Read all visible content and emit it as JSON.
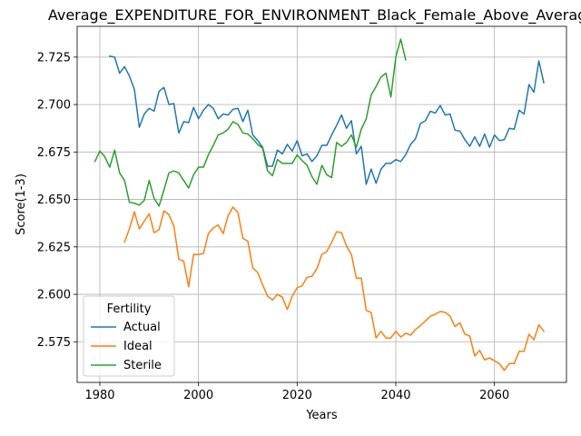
{
  "chart_data": {
    "type": "line",
    "title": "Average_EXPENDITURE_FOR_ENVIRONMENT_Black_Female_Above_Average",
    "xlabel": "Years",
    "ylabel": "Score(1-3)",
    "xlim": [
      1975.4,
      2074.6
    ],
    "ylim": [
      2.5536,
      2.7412
    ],
    "x_ticks": [
      1980,
      2000,
      2020,
      2040,
      2060
    ],
    "y_ticks": [
      2.575,
      2.6,
      2.625,
      2.65,
      2.675,
      2.7,
      2.725
    ],
    "y_tick_labels": [
      "2.575",
      "2.600",
      "2.625",
      "2.650",
      "2.675",
      "2.700",
      "2.725"
    ],
    "grid": true,
    "legend": {
      "title": "Fertility",
      "placement": "lower-left"
    },
    "colors": {
      "Actual": "#1f77b4",
      "Ideal": "#ff7f0e",
      "Sterile": "#2ca02c"
    },
    "series": [
      {
        "name": "Actual",
        "x": [
          1982,
          1983,
          1984,
          1985,
          1986,
          1987,
          1988,
          1989,
          1990,
          1991,
          1992,
          1993,
          1994,
          1995,
          1996,
          1997,
          1998,
          1999,
          2000,
          2001,
          2002,
          2003,
          2004,
          2005,
          2006,
          2007,
          2008,
          2009,
          2010,
          2011,
          2012,
          2013,
          2014,
          2015,
          2016,
          2017,
          2018,
          2019,
          2020,
          2021,
          2022,
          2023,
          2024,
          2025,
          2026,
          2027,
          2028,
          2029,
          2030,
          2031,
          2032,
          2033,
          2034,
          2035,
          2036,
          2037,
          2038,
          2039,
          2040,
          2041,
          2042,
          2043,
          2044,
          2045,
          2046,
          2047,
          2048,
          2049,
          2050,
          2051,
          2052,
          2053,
          2054,
          2055,
          2056,
          2057,
          2058,
          2059,
          2060,
          2061,
          2062,
          2063,
          2064,
          2065,
          2066,
          2067,
          2068,
          2069,
          2070
        ],
        "values": [
          2.7255,
          2.725,
          2.7165,
          2.72,
          2.715,
          2.708,
          2.688,
          2.695,
          2.698,
          2.6965,
          2.707,
          2.709,
          2.7,
          2.7005,
          2.685,
          2.691,
          2.6905,
          2.6985,
          2.6925,
          2.697,
          2.7,
          2.698,
          2.6925,
          2.695,
          2.6945,
          2.6975,
          2.698,
          2.691,
          2.697,
          2.684,
          2.681,
          2.6775,
          2.6675,
          2.6675,
          2.676,
          2.674,
          2.679,
          2.6755,
          2.681,
          2.673,
          2.674,
          2.67,
          2.673,
          2.6785,
          2.6785,
          2.684,
          2.689,
          2.6945,
          2.6875,
          2.6915,
          2.674,
          2.678,
          2.658,
          2.666,
          2.6585,
          2.666,
          2.669,
          2.669,
          2.671,
          2.67,
          2.6735,
          2.679,
          2.682,
          2.69,
          2.6915,
          2.6965,
          2.6955,
          2.6995,
          2.6945,
          2.695,
          2.6865,
          2.686,
          2.6815,
          2.678,
          2.683,
          2.678,
          2.6845,
          2.6775,
          2.684,
          2.681,
          2.6815,
          2.6875,
          2.687,
          2.697,
          2.695,
          2.7105,
          2.7065,
          2.723,
          2.7115
        ]
      },
      {
        "name": "Ideal",
        "x": [
          1985,
          1986,
          1987,
          1988,
          1989,
          1990,
          1991,
          1992,
          1993,
          1994,
          1995,
          1996,
          1997,
          1998,
          1999,
          2000,
          2001,
          2002,
          2003,
          2004,
          2005,
          2006,
          2007,
          2008,
          2009,
          2010,
          2011,
          2012,
          2013,
          2014,
          2015,
          2016,
          2017,
          2018,
          2019,
          2020,
          2021,
          2022,
          2023,
          2024,
          2025,
          2026,
          2027,
          2028,
          2029,
          2030,
          2031,
          2032,
          2033,
          2034,
          2035,
          2036,
          2037,
          2038,
          2039,
          2040,
          2041,
          2042,
          2043,
          2044,
          2045,
          2046,
          2047,
          2048,
          2049,
          2050,
          2051,
          2052,
          2053,
          2054,
          2055,
          2056,
          2057,
          2058,
          2059,
          2060,
          2061,
          2062,
          2063,
          2064,
          2065,
          2066,
          2067,
          2068,
          2069,
          2070
        ],
        "values": [
          2.6275,
          2.6345,
          2.6435,
          2.6345,
          2.6385,
          2.6425,
          2.6325,
          2.634,
          2.644,
          2.642,
          2.636,
          2.6185,
          2.6175,
          2.604,
          2.621,
          2.621,
          2.6215,
          2.632,
          2.635,
          2.6365,
          2.632,
          2.6415,
          2.646,
          2.643,
          2.6295,
          2.628,
          2.614,
          2.6115,
          2.605,
          2.599,
          2.597,
          2.6,
          2.5985,
          2.592,
          2.599,
          2.6035,
          2.6045,
          2.609,
          2.6095,
          2.6135,
          2.621,
          2.6225,
          2.6275,
          2.633,
          2.6325,
          2.6255,
          2.621,
          2.6085,
          2.6085,
          2.5915,
          2.5905,
          2.577,
          2.5805,
          2.577,
          2.577,
          2.5805,
          2.5775,
          2.5795,
          2.5785,
          2.5815,
          2.5835,
          2.586,
          2.5885,
          2.5895,
          2.591,
          2.5905,
          2.5885,
          2.583,
          2.585,
          2.579,
          2.578,
          2.5675,
          2.5705,
          2.5655,
          2.5665,
          2.565,
          2.5635,
          2.56,
          2.5635,
          2.5635,
          2.57,
          2.57,
          2.579,
          2.576,
          2.584,
          2.5805
        ]
      },
      {
        "name": "Sterile",
        "x": [
          1979,
          1980,
          1981,
          1982,
          1983,
          1984,
          1985,
          1986,
          1987,
          1988,
          1989,
          1990,
          1991,
          1992,
          1993,
          1994,
          1995,
          1996,
          1997,
          1998,
          1999,
          2000,
          2001,
          2002,
          2003,
          2004,
          2005,
          2006,
          2007,
          2008,
          2009,
          2010,
          2011,
          2012,
          2013,
          2014,
          2015,
          2016,
          2017,
          2018,
          2019,
          2020,
          2021,
          2022,
          2023,
          2024,
          2025,
          2026,
          2027,
          2028,
          2029,
          2030,
          2031,
          2032,
          2033,
          2034,
          2035,
          2036,
          2037,
          2038,
          2039,
          2040,
          2041,
          2042
        ],
        "values": [
          2.67,
          2.6755,
          2.6725,
          2.667,
          2.676,
          2.664,
          2.66,
          2.6485,
          2.648,
          2.647,
          2.6495,
          2.66,
          2.6505,
          2.6465,
          2.655,
          2.664,
          2.665,
          2.664,
          2.66,
          2.656,
          2.663,
          2.667,
          2.667,
          2.6735,
          2.6785,
          2.684,
          2.685,
          2.687,
          2.691,
          2.6895,
          2.685,
          2.6845,
          2.682,
          2.679,
          2.677,
          2.665,
          2.6625,
          2.671,
          2.669,
          2.669,
          2.669,
          2.6735,
          2.6705,
          2.668,
          2.662,
          2.658,
          2.668,
          2.663,
          2.6615,
          2.68,
          2.678,
          2.68,
          2.684,
          2.6775,
          2.687,
          2.6925,
          2.705,
          2.7095,
          2.7145,
          2.7165,
          2.704,
          2.725,
          2.7345,
          2.7235
        ]
      }
    ]
  }
}
